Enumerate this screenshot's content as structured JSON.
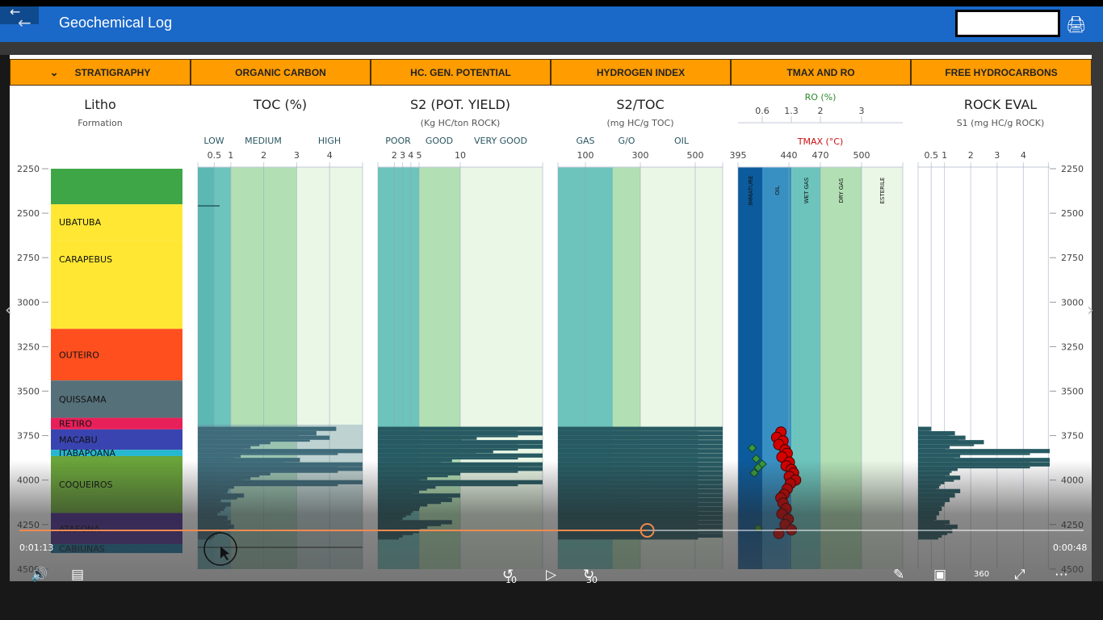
{
  "app": {
    "title": "Geochemical Log",
    "search_value": ""
  },
  "tabs": [
    "STRATIGRAPHY",
    "ORGANIC CARBON",
    "HC. GEN. POTENTIAL",
    "HYDROGEN INDEX",
    "TMAX AND RO",
    "FREE HYDROCARBONS"
  ],
  "tracks": {
    "litho": {
      "title": "Litho",
      "subtitle": "Formation"
    },
    "toc": {
      "title": "TOC (%)",
      "zones": [
        "LOW",
        "MEDIUM",
        "HIGH"
      ],
      "ticks": [
        "0.5",
        "1",
        "2",
        "3",
        "4"
      ]
    },
    "s2": {
      "title": "S2 (POT. YIELD)",
      "subtitle": "(Kg HC/ton ROCK)",
      "zones": [
        "POOR",
        "GOOD",
        "VERY GOOD"
      ],
      "ticks": [
        "2",
        "3",
        "4",
        "5",
        "10"
      ]
    },
    "hi": {
      "title": "S2/TOC",
      "subtitle": "(mg HC/g TOC)",
      "zones": [
        "GAS",
        "G/O",
        "OIL"
      ],
      "ticks": [
        "100",
        "300",
        "500"
      ]
    },
    "tmax": {
      "ro_title": "RO (%)",
      "ro_ticks": [
        "0.6",
        "1.3",
        "2",
        "3"
      ],
      "tmax_title": "TMAX (°C)",
      "tmax_ticks": [
        "395",
        "440",
        "470",
        "500"
      ],
      "zones": [
        "IMMATURE",
        "OIL",
        "WET GAS",
        "DRY GAS",
        "ESTERILE"
      ]
    },
    "s1": {
      "title": "ROCK EVAL",
      "subtitle": "S1 (mg HC/g ROCK)",
      "ticks": [
        "0.5",
        "1",
        "2",
        "3",
        "4"
      ]
    }
  },
  "depth_ticks": [
    "2250",
    "2500",
    "2750",
    "3000",
    "3250",
    "3500",
    "3750",
    "4000",
    "4250",
    "4500"
  ],
  "formations": [
    {
      "name": "",
      "top": 2250,
      "base": 2450,
      "color": "#3fa648"
    },
    {
      "name": "UBATUBA",
      "top": 2450,
      "base": 2650,
      "color": "#ffe733"
    },
    {
      "name": "CARAPEBUS",
      "top": 2650,
      "base": 3150,
      "color": "#ffe733"
    },
    {
      "name": "OUTEIRO",
      "top": 3150,
      "base": 3440,
      "color": "#ff4f1f"
    },
    {
      "name": "QUISSAMA",
      "top": 3440,
      "base": 3650,
      "color": "#56707a"
    },
    {
      "name": "RETIRO",
      "top": 3650,
      "base": 3715,
      "color": "#e8205a"
    },
    {
      "name": "MACABU",
      "top": 3715,
      "base": 3830,
      "color": "#3a44b0"
    },
    {
      "name": "ITABAPOANA",
      "top": 3830,
      "base": 3865,
      "color": "#25b8d0"
    },
    {
      "name": "COQUEIROS",
      "top": 3865,
      "base": 4185,
      "color": "#6aa43a"
    },
    {
      "name": "ATAFONA",
      "top": 4185,
      "base": 4360,
      "color": "#4a2a90"
    },
    {
      "name": "CABIUNAS",
      "top": 4360,
      "base": 4410,
      "color": "#0a6fa0"
    }
  ],
  "log_data": {
    "depths": [
      3700,
      3725,
      3750,
      3775,
      3800,
      3825,
      3850,
      3875,
      3900,
      3925,
      3950,
      3975,
      4000,
      4025,
      4050,
      4075,
      4100,
      4125,
      4150,
      4175,
      4200,
      4225,
      4250,
      4275,
      4300
    ],
    "toc": [
      4.2,
      3.6,
      4.0,
      2.2,
      1.6,
      5,
      1.3,
      3.1,
      5,
      5,
      2.2,
      1.6,
      5,
      1.1,
      0.9,
      1.4,
      0.7,
      1.0,
      0.8,
      0.6,
      0.9,
      1.0,
      1.1,
      0.7,
      0.5
    ],
    "s2": [
      20,
      20,
      12,
      20,
      20,
      14,
      20,
      9,
      20,
      20,
      10,
      6,
      20,
      7,
      5,
      10,
      9,
      6,
      5,
      4,
      3,
      9,
      6,
      5,
      3
    ],
    "hi": [
      600,
      600,
      600,
      600,
      600,
      600,
      600,
      600,
      600,
      600,
      600,
      600,
      600,
      600,
      600,
      600,
      600,
      600,
      600,
      600,
      600,
      600,
      600,
      600,
      600
    ],
    "s1": [
      0.5,
      1.4,
      1.8,
      2.5,
      1.2,
      5,
      1.6,
      5,
      5,
      1.5,
      1.2,
      1.6,
      1.0,
      0.8,
      1.6,
      1.4,
      1.2,
      1.0,
      0.9,
      0.8,
      0.7,
      1.2,
      1.5,
      1.3,
      0.9
    ],
    "tmax": [
      [
        3730,
        432
      ],
      [
        3760,
        428
      ],
      [
        3780,
        434
      ],
      [
        3800,
        430
      ],
      [
        3830,
        436
      ],
      [
        3850,
        438
      ],
      [
        3870,
        433
      ],
      [
        3900,
        440
      ],
      [
        3920,
        437
      ],
      [
        3940,
        442
      ],
      [
        3960,
        444
      ],
      [
        3980,
        440
      ],
      [
        4000,
        446
      ],
      [
        4020,
        441
      ],
      [
        4050,
        438
      ],
      [
        4080,
        435
      ],
      [
        4100,
        432
      ],
      [
        4130,
        434
      ],
      [
        4160,
        437
      ],
      [
        4190,
        433
      ],
      [
        4220,
        439
      ],
      [
        4250,
        436
      ],
      [
        4280,
        442
      ],
      [
        4300,
        430
      ]
    ],
    "ro": [
      [
        3820,
        0.35
      ],
      [
        3880,
        0.45
      ],
      [
        3910,
        0.6
      ],
      [
        3960,
        0.4
      ],
      [
        3930,
        0.5
      ],
      [
        4270,
        0.5
      ]
    ]
  },
  "colors": {
    "accent": "#ff9c00",
    "appbar": "#1a68c8",
    "bar": "#275a62",
    "tmax_point": "#d40000",
    "ro_point": "#3a9a3a"
  },
  "player": {
    "elapsed": "0:01:13",
    "remaining": "0:00:48",
    "progress": 0.59,
    "rewind_label": "10",
    "forward_label": "30",
    "vr_label": "360"
  }
}
